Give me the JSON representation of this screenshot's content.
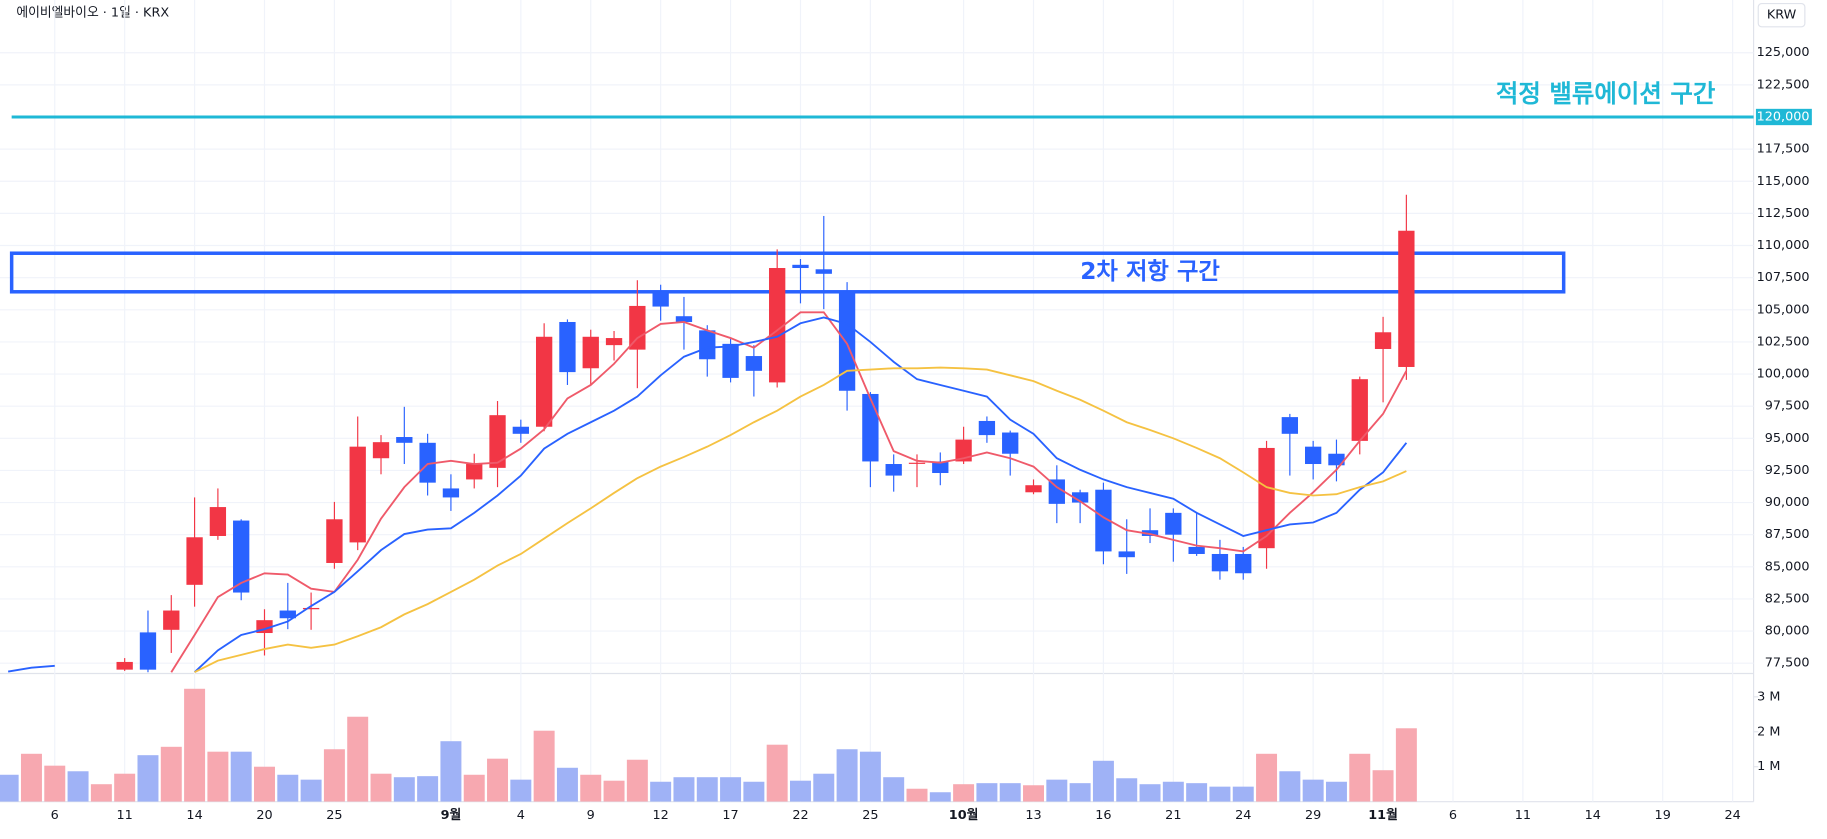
{
  "chart_data": {
    "type": "candlestick",
    "title": "에이비엘바이오 · 1일 · KRX",
    "currency": "KRW",
    "categories": [
      null,
      null,
      "6",
      null,
      null,
      "11",
      null,
      null,
      "14",
      null,
      null,
      "20",
      null,
      null,
      "25",
      null,
      null,
      null,
      null,
      "9월",
      null,
      null,
      "4",
      null,
      null,
      "9",
      null,
      null,
      "12",
      null,
      null,
      "17",
      null,
      null,
      "22",
      null,
      null,
      "25",
      null,
      null,
      null,
      "10월",
      null,
      null,
      "13",
      null,
      null,
      "16",
      null,
      null,
      "21",
      null,
      null,
      "24",
      null,
      null,
      "29",
      null,
      null,
      "11월",
      null,
      null,
      "6",
      null,
      null,
      "11",
      null,
      null,
      "14",
      null,
      null,
      "19",
      null,
      null,
      "24"
    ],
    "open": [
      null,
      null,
      null,
      null,
      null,
      77000,
      79900,
      80100,
      83600,
      87400,
      88600,
      79850,
      81600,
      81700,
      85300,
      86900,
      93450,
      95100,
      94650,
      91100,
      91800,
      92700,
      95900,
      95900,
      104050,
      100450,
      102250,
      101900,
      106400,
      104500,
      103400,
      102350,
      101400,
      99350,
      108500,
      108150,
      106400,
      98450,
      93000,
      93050,
      93200,
      93200,
      96350,
      95450,
      90800,
      91800,
      90800,
      91000,
      86200,
      87850,
      89200,
      86550,
      86000,
      86000,
      86450,
      96650,
      94350,
      93800,
      94800,
      101950,
      100550,
      null,
      null,
      null,
      null,
      null,
      null,
      null,
      null,
      null,
      null,
      null,
      null,
      null,
      null
    ],
    "high": [
      null,
      null,
      null,
      null,
      null,
      77900,
      81600,
      82800,
      90400,
      91100,
      88700,
      81700,
      83750,
      83000,
      90050,
      96700,
      95250,
      97450,
      95350,
      92200,
      93800,
      97900,
      96450,
      103950,
      104250,
      103450,
      103350,
      107300,
      106950,
      106000,
      103800,
      102800,
      102250,
      109700,
      108950,
      112300,
      107150,
      98600,
      93750,
      93750,
      93900,
      95900,
      96700,
      95600,
      91800,
      92900,
      91000,
      91550,
      88700,
      89550,
      89550,
      89200,
      87100,
      86550,
      94800,
      96900,
      94800,
      94900,
      99800,
      104450,
      113950,
      null,
      null,
      null,
      null,
      null,
      null,
      null,
      null,
      null,
      null,
      null,
      null,
      null,
      null
    ],
    "low": [
      null,
      null,
      null,
      null,
      null,
      76900,
      76800,
      78300,
      81900,
      87100,
      82400,
      78100,
      80150,
      80100,
      84850,
      86300,
      92200,
      93000,
      90550,
      89350,
      91100,
      91200,
      94650,
      95550,
      99150,
      99150,
      101050,
      98900,
      104150,
      101900,
      99800,
      99350,
      98250,
      98950,
      105500,
      105050,
      97150,
      91200,
      90850,
      91200,
      91350,
      93000,
      94650,
      92100,
      90650,
      88400,
      88400,
      85200,
      84450,
      86850,
      85400,
      85850,
      84000,
      84000,
      84850,
      92100,
      91800,
      91650,
      93750,
      97800,
      99550,
      null,
      null,
      null,
      null,
      null,
      null,
      null,
      null,
      null,
      null,
      null,
      null,
      null,
      null
    ],
    "close": [
      null,
      null,
      null,
      null,
      null,
      77600,
      77000,
      81600,
      87300,
      89650,
      83000,
      80850,
      81000,
      81800,
      88700,
      94350,
      94700,
      94650,
      91550,
      90400,
      93000,
      96800,
      95350,
      102900,
      100150,
      102900,
      102800,
      105300,
      105250,
      104050,
      101150,
      99700,
      100250,
      108250,
      108250,
      107800,
      98700,
      93200,
      92100,
      93100,
      92300,
      94900,
      95250,
      93800,
      91350,
      89900,
      90000,
      86200,
      85750,
      87400,
      87500,
      86000,
      84650,
      84500,
      94250,
      95350,
      93000,
      92900,
      99600,
      103250,
      111150,
      null,
      null,
      null,
      null,
      null,
      null,
      null,
      null,
      null,
      null,
      null,
      null,
      null,
      null
    ],
    "up_color": "#f23645",
    "down_color": "#2962ff",
    "moving_averages": [
      {
        "color": "#ef5a6a",
        "values": [
          null,
          null,
          null,
          null,
          null,
          null,
          null,
          76800,
          79700,
          82650,
          83750,
          84500,
          84400,
          83300,
          83050,
          85550,
          88750,
          91200,
          93000,
          93250,
          93000,
          93100,
          94200,
          95700,
          98100,
          99150,
          100800,
          102800,
          103900,
          104050,
          103400,
          102800,
          102050,
          103400,
          104800,
          104800,
          102350,
          98100,
          94000,
          93250,
          93100,
          93450,
          93900,
          93450,
          92800,
          91200,
          90100,
          88850,
          87850,
          87550,
          87100,
          86650,
          86450,
          86200,
          87400,
          89200,
          90800,
          92550,
          94800,
          96900,
          100250,
          null,
          null,
          null,
          null,
          null,
          null,
          null,
          null,
          null,
          null,
          null,
          null,
          null,
          null
        ]
      },
      {
        "color": "#2962ff",
        "values": [
          76850,
          77150,
          77300,
          null,
          null,
          null,
          null,
          null,
          76800,
          78500,
          79700,
          80150,
          80750,
          81950,
          83050,
          84650,
          86300,
          87550,
          87900,
          88000,
          89200,
          90550,
          92100,
          94200,
          95350,
          96250,
          97150,
          98250,
          99900,
          101350,
          102050,
          102150,
          102500,
          102900,
          103950,
          104400,
          103900,
          102500,
          100950,
          99600,
          99150,
          98700,
          98250,
          96450,
          95350,
          93450,
          92550,
          91800,
          91200,
          90750,
          90300,
          89200,
          88300,
          87400,
          87850,
          88300,
          88450,
          89200,
          91000,
          92350,
          94650,
          null,
          null,
          null,
          null,
          null,
          null,
          null,
          null,
          null,
          null,
          null,
          null,
          null,
          null
        ]
      },
      {
        "color": "#f5c242",
        "values": [
          null,
          null,
          null,
          null,
          null,
          null,
          null,
          null,
          76800,
          77700,
          78150,
          78600,
          78950,
          78700,
          78950,
          79600,
          80300,
          81300,
          82100,
          83050,
          84000,
          85100,
          86000,
          87200,
          88400,
          89550,
          90750,
          91900,
          92800,
          93550,
          94350,
          95250,
          96250,
          97150,
          98250,
          99150,
          100250,
          100350,
          100450,
          100450,
          100500,
          100450,
          100350,
          99900,
          99450,
          98700,
          98000,
          97150,
          96250,
          95650,
          95000,
          94250,
          93450,
          92350,
          91200,
          90750,
          90550,
          90650,
          91200,
          91650,
          92450,
          null,
          null,
          null,
          null,
          null,
          null,
          null,
          null,
          null,
          null,
          null,
          null,
          null,
          null
        ]
      }
    ],
    "volume": {
      "values": [
        770000,
        1370000,
        1030000,
        870000,
        500000,
        800000,
        1330000,
        1570000,
        3230000,
        1430000,
        1430000,
        1000000,
        770000,
        630000,
        1500000,
        2430000,
        800000,
        700000,
        730000,
        1730000,
        770000,
        1230000,
        630000,
        2030000,
        970000,
        770000,
        600000,
        1200000,
        570000,
        700000,
        700000,
        700000,
        570000,
        1630000,
        600000,
        800000,
        1500000,
        1430000,
        700000,
        370000,
        270000,
        500000,
        530000,
        530000,
        470000,
        630000,
        530000,
        1170000,
        670000,
        500000,
        570000,
        530000,
        430000,
        430000,
        1370000,
        870000,
        630000,
        570000,
        1370000,
        900000,
        2100000,
        null,
        null,
        null,
        null,
        null,
        null,
        null,
        null,
        null,
        null,
        null,
        null,
        null,
        null
      ],
      "colors": [
        "#9fb2f6",
        "#f7a8b0",
        "#f7a8b0",
        "#9fb2f6",
        "#f7a8b0",
        "#f7a8b0",
        "#9fb2f6",
        "#f7a8b0",
        "#f7a8b0",
        "#f7a8b0",
        "#9fb2f6",
        "#f7a8b0",
        "#9fb2f6",
        "#9fb2f6",
        "#f7a8b0",
        "#f7a8b0",
        "#f7a8b0",
        "#9fb2f6",
        "#9fb2f6",
        "#9fb2f6",
        "#f7a8b0",
        "#f7a8b0",
        "#9fb2f6",
        "#f7a8b0",
        "#9fb2f6",
        "#f7a8b0",
        "#f7a8b0",
        "#f7a8b0",
        "#9fb2f6",
        "#9fb2f6",
        "#9fb2f6",
        "#9fb2f6",
        "#9fb2f6",
        "#f7a8b0",
        "#9fb2f6",
        "#9fb2f6",
        "#9fb2f6",
        "#9fb2f6",
        "#9fb2f6",
        "#f7a8b0",
        "#9fb2f6",
        "#f7a8b0",
        "#9fb2f6",
        "#9fb2f6",
        "#f7a8b0",
        "#9fb2f6",
        "#9fb2f6",
        "#9fb2f6",
        "#9fb2f6",
        "#9fb2f6",
        "#9fb2f6",
        "#9fb2f6",
        "#9fb2f6",
        "#9fb2f6",
        "#f7a8b0",
        "#9fb2f6",
        "#9fb2f6",
        "#9fb2f6",
        "#f7a8b0",
        "#f7a8b0",
        "#f7a8b0",
        null,
        null,
        null,
        null,
        null,
        null,
        null,
        null,
        null,
        null,
        null,
        null,
        null,
        null
      ]
    },
    "ylim": [
      76700,
      129100
    ],
    "yticks": [
      {
        "value": 77500,
        "label": "77,500"
      },
      {
        "value": 80000,
        "label": "80,000"
      },
      {
        "value": 82500,
        "label": "82,500"
      },
      {
        "value": 85000,
        "label": "85,000"
      },
      {
        "value": 87500,
        "label": "87,500"
      },
      {
        "value": 90000,
        "label": "90,000"
      },
      {
        "value": 92500,
        "label": "92,500"
      },
      {
        "value": 95000,
        "label": "95,000"
      },
      {
        "value": 97500,
        "label": "97,500"
      },
      {
        "value": 100000,
        "label": "100,000"
      },
      {
        "value": 102500,
        "label": "102,500"
      },
      {
        "value": 105000,
        "label": "105,000"
      },
      {
        "value": 107500,
        "label": "107,500"
      },
      {
        "value": 110000,
        "label": "110,000"
      },
      {
        "value": 112500,
        "label": "112,500"
      },
      {
        "value": 115000,
        "label": "115,000"
      },
      {
        "value": 117500,
        "label": "117,500"
      },
      {
        "value": 122500,
        "label": "122,500"
      },
      {
        "value": 125000,
        "label": "125,000"
      }
    ],
    "y2lim": [
      0,
      3666667
    ],
    "y2ticks": [
      {
        "value": 1000000,
        "label": "1 M"
      },
      {
        "value": 2000000,
        "label": "2 M"
      },
      {
        "value": 3000000,
        "label": "3 M"
      }
    ],
    "grid": true,
    "valuation": {
      "value": 120000,
      "label": "120,000",
      "text": "적정 밸류에이션 구간",
      "color": "#1fb8d6"
    },
    "resistance": {
      "top": 109400,
      "bottom": 106400,
      "text": "2차 저항 구간",
      "color": "#2962ff"
    }
  }
}
